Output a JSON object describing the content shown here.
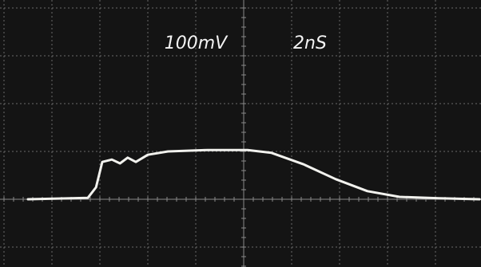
{
  "chart_data": {
    "type": "line",
    "volts_per_div": "100mV",
    "time_per_div": "2nS",
    "x": [
      0.5,
      1.75,
      1.92,
      2.05,
      2.25,
      2.42,
      2.58,
      2.75,
      3.0,
      3.42,
      4.25,
      5.08,
      5.58,
      6.25,
      6.92,
      7.58,
      8.25,
      9.08,
      9.92
    ],
    "series": [
      {
        "color": "#f2f2ee",
        "values": [
          1.0,
          1.03,
          1.25,
          1.78,
          1.83,
          1.75,
          1.87,
          1.78,
          1.93,
          2.0,
          2.03,
          2.03,
          1.97,
          1.73,
          1.42,
          1.17,
          1.05,
          1.02,
          1.0
        ]
      }
    ],
    "xlim": [
      0,
      10
    ],
    "ylim": [
      0,
      5
    ],
    "xticks": [
      0,
      1,
      2,
      3,
      4,
      5,
      6,
      7,
      8,
      9,
      10
    ],
    "yticks": [
      0,
      1,
      2,
      3,
      4,
      5
    ],
    "grid": true
  }
}
